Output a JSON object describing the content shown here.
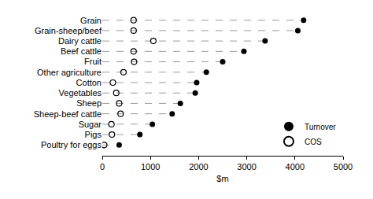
{
  "chart_data": {
    "type": "scatter",
    "orientation": "horizontal",
    "line_style": "dashed",
    "x_label": "$m",
    "categories": [
      "Grain",
      "Grain-sheep/beef",
      "Dairy cattle",
      "Beef cattle",
      "Fruit",
      "Other agriculture",
      "Cotton",
      "Vegetables",
      "Sheep",
      "Sheep-beef cattle",
      "Sugar",
      "Pigs",
      "Poultry for eggs"
    ],
    "series": [
      {
        "name": "Turnover",
        "color": "#000000",
        "marker": "circle",
        "values": [
          4180,
          4060,
          3380,
          2940,
          2500,
          2160,
          1960,
          1930,
          1620,
          1450,
          1040,
          780,
          350
        ]
      },
      {
        "name": "COS",
        "color": "#000000",
        "marker": "circle-open",
        "values": [
          650,
          650,
          1060,
          650,
          660,
          440,
          220,
          290,
          350,
          380,
          190,
          200,
          40
        ]
      }
    ],
    "xlim": [
      0,
      5000
    ],
    "xticks": [
      0,
      1000,
      2000,
      3000,
      4000,
      5000
    ],
    "grid": false,
    "legend": "bottom right"
  }
}
